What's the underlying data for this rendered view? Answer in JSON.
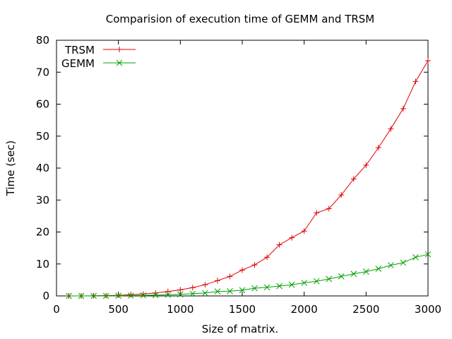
{
  "chart_data": {
    "type": "line",
    "title": "Comparision of execution time of GEMM and TRSM",
    "xlabel": "Size of matrix.",
    "ylabel": "Time (sec)",
    "xlim": [
      0,
      3000
    ],
    "ylim": [
      0,
      80
    ],
    "xticks": [
      0,
      500,
      1000,
      1500,
      2000,
      2500,
      3000
    ],
    "yticks": [
      0,
      10,
      20,
      30,
      40,
      50,
      60,
      70,
      80
    ],
    "grid": false,
    "legend_position": "top-left",
    "x": [
      100,
      200,
      300,
      400,
      500,
      600,
      700,
      800,
      900,
      1000,
      1100,
      1200,
      1300,
      1400,
      1500,
      1600,
      1700,
      1800,
      1900,
      2000,
      2100,
      2200,
      2300,
      2400,
      2500,
      2600,
      2700,
      2800,
      2900,
      3000
    ],
    "series": [
      {
        "name": "TRSM",
        "color": "#e00000",
        "marker": "plus",
        "values": [
          0.0,
          0.0,
          0.05,
          0.1,
          0.2,
          0.4,
          0.6,
          0.9,
          1.4,
          1.9,
          2.6,
          3.5,
          4.8,
          6.1,
          8.1,
          9.7,
          12.1,
          16.0,
          18.2,
          20.3,
          26.0,
          27.3,
          31.6,
          36.6,
          40.9,
          46.4,
          52.3,
          58.6,
          67.1,
          73.6
        ]
      },
      {
        "name": "GEMM",
        "color": "#00a000",
        "marker": "x",
        "values": [
          0.0,
          0.0,
          0.0,
          0.0,
          0.05,
          0.1,
          0.15,
          0.25,
          0.35,
          0.5,
          0.7,
          0.9,
          1.4,
          1.5,
          1.8,
          2.4,
          2.7,
          3.1,
          3.5,
          4.1,
          4.6,
          5.3,
          6.1,
          6.9,
          7.6,
          8.5,
          9.6,
          10.4,
          12.1,
          13.0
        ]
      }
    ]
  }
}
